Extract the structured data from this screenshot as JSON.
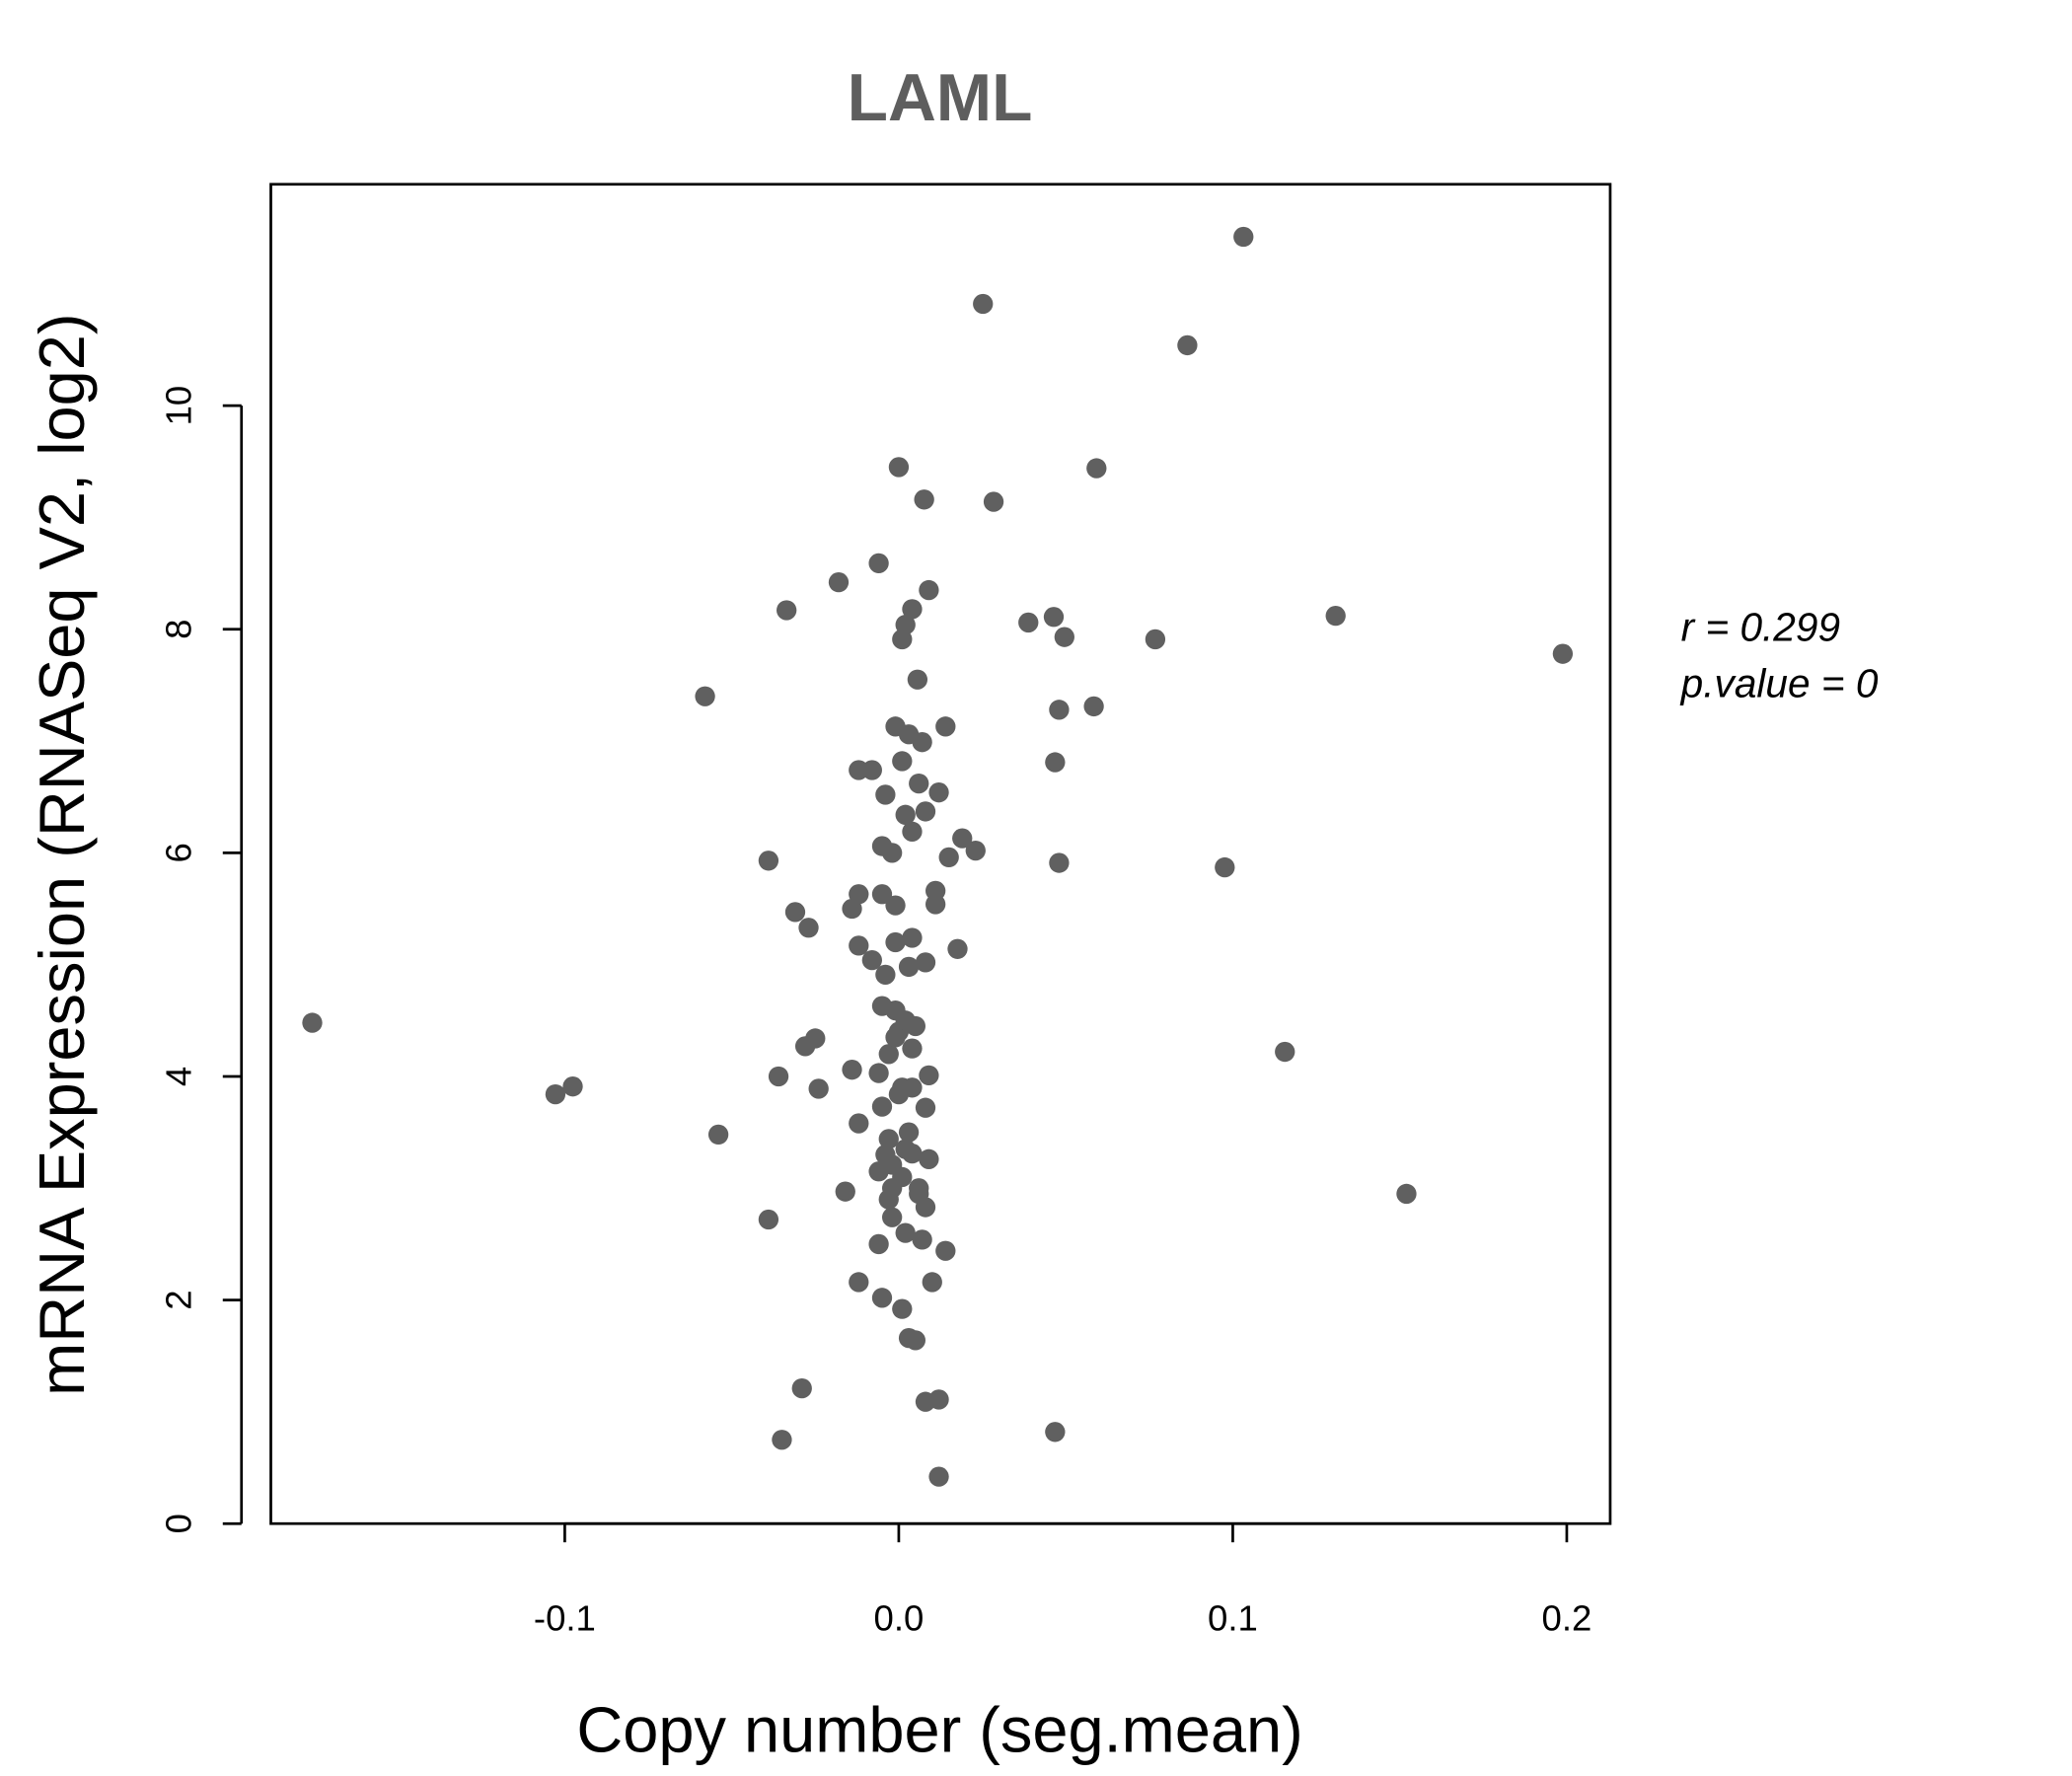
{
  "chart_data": {
    "type": "scatter",
    "title": "LAML",
    "xlabel": "Copy number (seg.mean)",
    "ylabel": "mRNA Expression (RNASeq V2, log2)",
    "xlim": [
      -0.188,
      0.213
    ],
    "ylim": [
      0,
      11.98
    ],
    "x_ticks": [
      -0.1,
      0.0,
      0.1,
      0.2
    ],
    "x_tick_labels": [
      "-0.1",
      "0.0",
      "0.1",
      "0.2"
    ],
    "y_ticks": [
      0,
      2,
      4,
      6,
      8,
      10
    ],
    "y_tick_labels": [
      "0",
      "2",
      "4",
      "6",
      "8",
      "10"
    ],
    "grid": false,
    "point_color": "#606060",
    "annotations": {
      "r": "r = 0.299",
      "p": "p.value = 0"
    },
    "points": [
      [
        -0.1756,
        4.48
      ],
      [
        -0.1028,
        3.84
      ],
      [
        -0.0976,
        3.91
      ],
      [
        -0.058,
        7.4
      ],
      [
        -0.054,
        3.48
      ],
      [
        -0.039,
        5.93
      ],
      [
        -0.039,
        2.72
      ],
      [
        -0.036,
        4.0
      ],
      [
        -0.035,
        0.75
      ],
      [
        -0.0336,
        8.17
      ],
      [
        -0.031,
        5.47
      ],
      [
        -0.029,
        1.21
      ],
      [
        -0.028,
        4.27
      ],
      [
        -0.027,
        5.33
      ],
      [
        -0.025,
        4.34
      ],
      [
        -0.024,
        3.89
      ],
      [
        -0.018,
        8.42
      ],
      [
        -0.016,
        2.97
      ],
      [
        -0.014,
        5.5
      ],
      [
        -0.014,
        4.06
      ],
      [
        -0.012,
        6.74
      ],
      [
        -0.012,
        5.63
      ],
      [
        -0.012,
        5.17
      ],
      [
        -0.012,
        3.58
      ],
      [
        -0.012,
        2.16
      ],
      [
        -0.008,
        6.74
      ],
      [
        -0.008,
        5.04
      ],
      [
        -0.006,
        4.03
      ],
      [
        -0.006,
        8.59
      ],
      [
        -0.006,
        2.5
      ],
      [
        -0.005,
        6.06
      ],
      [
        -0.005,
        5.63
      ],
      [
        -0.005,
        4.63
      ],
      [
        -0.005,
        3.73
      ],
      [
        -0.005,
        2.02
      ],
      [
        -0.004,
        6.52
      ],
      [
        -0.004,
        4.91
      ],
      [
        -0.003,
        3.44
      ],
      [
        -0.002,
        3.21
      ],
      [
        -0.002,
        6.0
      ],
      [
        -0.002,
        2.74
      ],
      [
        -0.001,
        5.2
      ],
      [
        -0.001,
        7.13
      ],
      [
        -0.001,
        4.59
      ],
      [
        -0.001,
        5.53
      ],
      [
        0.0,
        3.84
      ],
      [
        0.0,
        9.45
      ],
      [
        0.001,
        7.91
      ],
      [
        0.001,
        1.92
      ],
      [
        0.001,
        6.82
      ],
      [
        0.002,
        6.34
      ],
      [
        0.002,
        8.04
      ],
      [
        0.003,
        7.06
      ],
      [
        0.003,
        4.98
      ],
      [
        0.003,
        1.66
      ],
      [
        0.004,
        8.18
      ],
      [
        0.004,
        5.24
      ],
      [
        0.004,
        4.25
      ],
      [
        0.004,
        3.31
      ],
      [
        0.004,
        6.19
      ],
      [
        0.005,
        1.64
      ],
      [
        0.0056,
        7.55
      ],
      [
        0.006,
        6.62
      ],
      [
        0.006,
        2.95
      ],
      [
        0.007,
        6.99
      ],
      [
        0.007,
        2.54
      ],
      [
        0.0076,
        9.16
      ],
      [
        0.008,
        6.37
      ],
      [
        0.008,
        1.09
      ],
      [
        0.008,
        3.72
      ],
      [
        0.008,
        2.83
      ],
      [
        0.008,
        5.02
      ],
      [
        0.009,
        3.26
      ],
      [
        0.009,
        8.35
      ],
      [
        0.009,
        4.01
      ],
      [
        0.01,
        2.16
      ],
      [
        0.011,
        5.54
      ],
      [
        0.011,
        5.66
      ],
      [
        0.012,
        6.54
      ],
      [
        0.012,
        0.42
      ],
      [
        0.012,
        1.11
      ],
      [
        0.014,
        7.13
      ],
      [
        0.014,
        2.44
      ],
      [
        0.015,
        5.96
      ],
      [
        0.0176,
        5.14
      ],
      [
        0.019,
        6.13
      ],
      [
        0.023,
        6.02
      ],
      [
        0.0252,
        10.91
      ],
      [
        0.0284,
        9.14
      ],
      [
        0.0388,
        8.06
      ],
      [
        0.0464,
        8.11
      ],
      [
        0.0468,
        0.82
      ],
      [
        0.0468,
        6.81
      ],
      [
        0.048,
        7.28
      ],
      [
        0.048,
        5.91
      ],
      [
        0.0496,
        7.93
      ],
      [
        0.0584,
        7.31
      ],
      [
        0.0592,
        9.44
      ],
      [
        0.0768,
        7.91
      ],
      [
        0.0864,
        10.54
      ],
      [
        0.0976,
        5.87
      ],
      [
        0.1032,
        11.51
      ],
      [
        0.1156,
        4.22
      ],
      [
        0.1308,
        8.12
      ],
      [
        0.152,
        2.95
      ],
      [
        0.1988,
        7.78
      ],
      [
        0.0,
        4.4
      ],
      [
        0.002,
        4.5
      ],
      [
        -0.003,
        4.2
      ],
      [
        0.005,
        4.45
      ],
      [
        -0.004,
        3.3
      ],
      [
        0.001,
        3.1
      ],
      [
        0.003,
        3.5
      ],
      [
        -0.002,
        3.0
      ],
      [
        0.006,
        3.0
      ],
      [
        -0.006,
        3.15
      ],
      [
        0.002,
        2.6
      ],
      [
        0.001,
        3.9
      ],
      [
        -0.001,
        4.35
      ],
      [
        0.004,
        3.9
      ],
      [
        -0.003,
        2.9
      ],
      [
        0.002,
        3.35
      ]
    ]
  }
}
